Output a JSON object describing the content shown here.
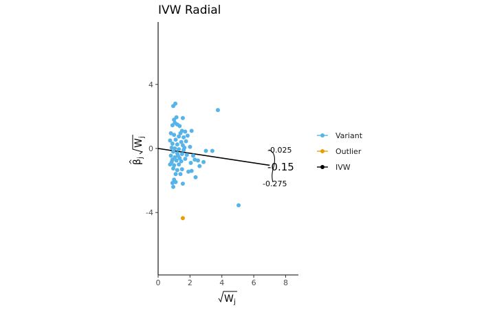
{
  "chart_data": {
    "type": "scatter",
    "title": "IVW Radial",
    "xlabel": "√W_j",
    "ylabel": "β̂_j √W_j",
    "xlim": [
      0,
      8.8
    ],
    "ylim": [
      -7.9,
      7.9
    ],
    "x_ticks": [
      0,
      2,
      4,
      6,
      8
    ],
    "y_ticks": [
      -4,
      0,
      4
    ],
    "x_tick_labels": [
      "0",
      "2",
      "4",
      "6",
      "8"
    ],
    "y_tick_labels": [
      "-4",
      "0",
      "4"
    ],
    "grid": false,
    "legend_position": "right",
    "series": [
      {
        "name": "Variant",
        "color": "#56B4E9",
        "points": [
          [
            1.08,
            2.8
          ],
          [
            0.95,
            2.65
          ],
          [
            3.75,
            2.4
          ],
          [
            1.55,
            1.9
          ],
          [
            1.15,
            1.95
          ],
          [
            1.0,
            1.8
          ],
          [
            1.05,
            1.6
          ],
          [
            1.2,
            1.5
          ],
          [
            0.9,
            1.45
          ],
          [
            1.35,
            1.4
          ],
          [
            1.5,
            1.1
          ],
          [
            1.7,
            1.05
          ],
          [
            2.1,
            1.1
          ],
          [
            0.8,
            0.95
          ],
          [
            1.0,
            0.85
          ],
          [
            1.3,
            0.75
          ],
          [
            1.6,
            0.7
          ],
          [
            1.85,
            0.8
          ],
          [
            0.75,
            0.5
          ],
          [
            1.1,
            0.55
          ],
          [
            1.45,
            0.4
          ],
          [
            1.75,
            0.45
          ],
          [
            0.9,
            0.3
          ],
          [
            1.2,
            0.25
          ],
          [
            1.55,
            0.2
          ],
          [
            2.0,
            0.1
          ],
          [
            0.85,
            0.05
          ],
          [
            1.05,
            0.0
          ],
          [
            1.3,
            -0.05
          ],
          [
            1.6,
            -0.1
          ],
          [
            3.0,
            -0.15
          ],
          [
            3.4,
            -0.15
          ],
          [
            0.95,
            -0.2
          ],
          [
            1.2,
            -0.3
          ],
          [
            1.5,
            -0.35
          ],
          [
            1.8,
            -0.4
          ],
          [
            2.2,
            -0.45
          ],
          [
            0.8,
            -0.45
          ],
          [
            1.05,
            -0.55
          ],
          [
            1.35,
            -0.6
          ],
          [
            1.7,
            -0.65
          ],
          [
            2.3,
            -0.7
          ],
          [
            2.5,
            -0.75
          ],
          [
            0.9,
            -0.7
          ],
          [
            1.15,
            -0.75
          ],
          [
            1.45,
            -0.8
          ],
          [
            2.85,
            -0.85
          ],
          [
            2.05,
            -0.9
          ],
          [
            0.75,
            -1.0
          ],
          [
            1.0,
            -1.05
          ],
          [
            1.3,
            -1.0
          ],
          [
            2.6,
            -1.1
          ],
          [
            0.95,
            -1.25
          ],
          [
            1.2,
            -1.35
          ],
          [
            1.5,
            -1.3
          ],
          [
            1.9,
            -1.45
          ],
          [
            2.1,
            -1.4
          ],
          [
            1.1,
            -1.6
          ],
          [
            1.4,
            -1.6
          ],
          [
            2.35,
            -1.8
          ],
          [
            1.0,
            -1.95
          ],
          [
            0.9,
            -2.15
          ],
          [
            1.1,
            -2.1
          ],
          [
            1.55,
            -2.2
          ],
          [
            0.95,
            -2.4
          ],
          [
            5.05,
            -3.55
          ],
          [
            1.25,
            -0.45
          ],
          [
            1.65,
            0.05
          ],
          [
            0.85,
            -0.85
          ],
          [
            1.4,
            0.95
          ]
        ]
      },
      {
        "name": "Outlier",
        "color": "#E69F00",
        "points": [
          [
            1.55,
            -4.35
          ]
        ]
      }
    ],
    "ivw_line": {
      "name": "IVW",
      "color": "#000000",
      "intercept": 0,
      "slope": -0.15
    },
    "annotations": [
      {
        "text": "-0.025"
      },
      {
        "text": "-0.15"
      },
      {
        "text": "-0.275"
      }
    ],
    "legend": [
      {
        "label": "Variant",
        "color": "#56B4E9"
      },
      {
        "label": "Outlier",
        "color": "#E69F00"
      },
      {
        "label": "IVW",
        "color": "#000000"
      }
    ]
  }
}
